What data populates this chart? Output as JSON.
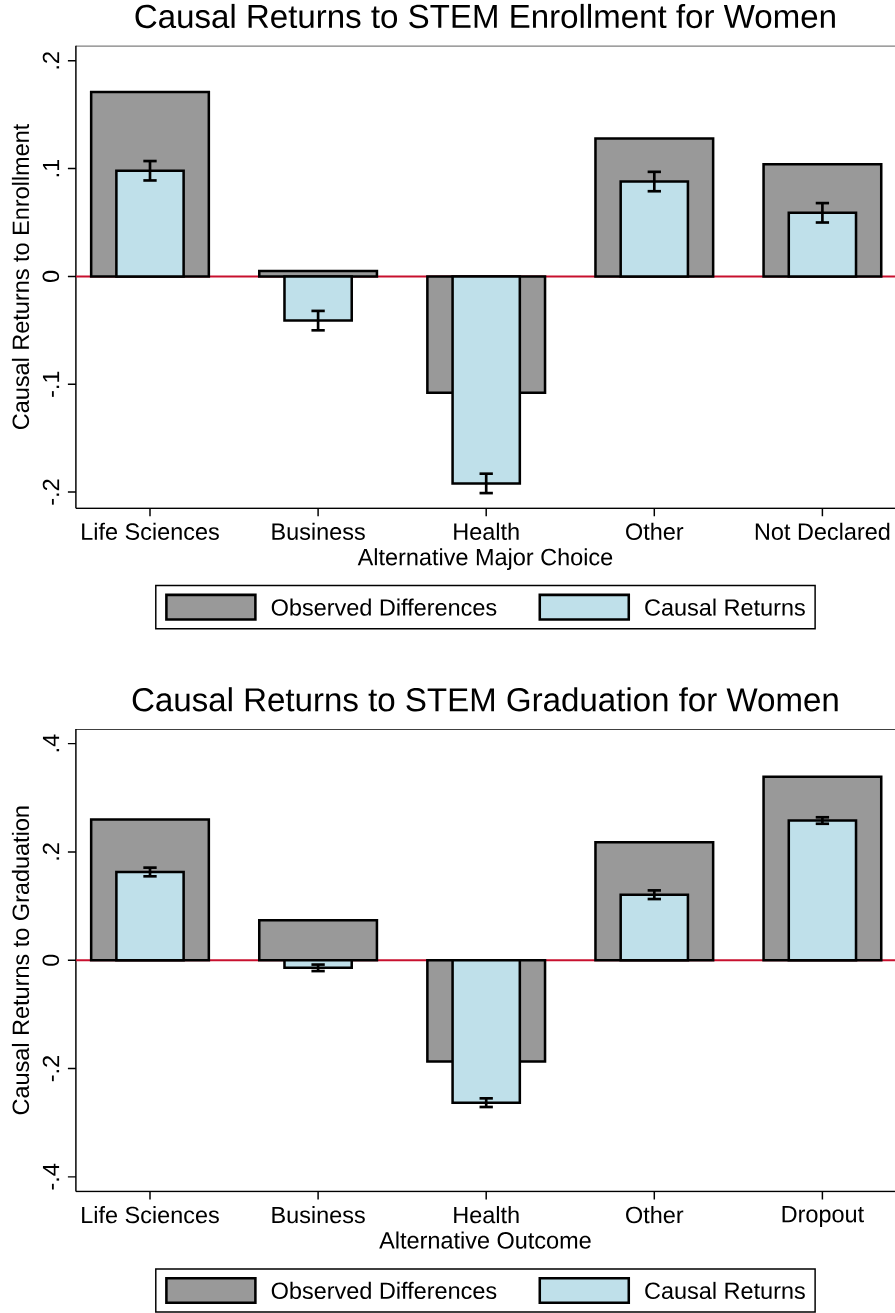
{
  "chart_data": [
    {
      "type": "bar",
      "title": "Causal Returns to STEM Enrollment for Women",
      "xlabel": "Alternative Major Choice",
      "ylabel": "Causal Returns to Enrollment",
      "categories": [
        "Life Sciences",
        "Business",
        "Health",
        "Other",
        "Not Declared"
      ],
      "series": [
        {
          "name": "Observed Differences",
          "color": "#999999",
          "values": [
            0.171,
            0.005,
            -0.108,
            0.128,
            0.104
          ]
        },
        {
          "name": "Causal Returns",
          "color": "#bfe0ea",
          "values": [
            0.098,
            -0.041,
            -0.192,
            0.088,
            0.059
          ],
          "errors": [
            0.009,
            0.009,
            0.009,
            0.009,
            0.009
          ]
        }
      ],
      "ylim": [
        -0.215,
        0.214
      ],
      "yticks": [
        {
          "value": -0.2,
          "label": "-.2"
        },
        {
          "value": -0.1,
          "label": "-.1"
        },
        0,
        {
          "value": 0.1,
          "label": ".1"
        },
        {
          "value": 0.2,
          "label": ".2"
        }
      ],
      "ref_lines": [
        {
          "axis": "y",
          "value": 0,
          "color": "#c8102e"
        }
      ],
      "legend": "bottom"
    },
    {
      "type": "bar",
      "title": "Causal Returns to STEM Graduation for Women",
      "xlabel": "Alternative Outcome",
      "ylabel": "Causal Returns to Graduation",
      "categories": [
        "Life Sciences",
        "Business",
        "Health",
        "Other",
        "Dropout"
      ],
      "series": [
        {
          "name": "Observed Differences",
          "color": "#999999",
          "values": [
            0.26,
            0.074,
            -0.187,
            0.218,
            0.339
          ]
        },
        {
          "name": "Causal Returns",
          "color": "#bfe0ea",
          "values": [
            0.163,
            -0.014,
            -0.263,
            0.121,
            0.258
          ],
          "errors": [
            0.008,
            0.006,
            0.008,
            0.008,
            0.006
          ]
        }
      ],
      "ylim": [
        -0.427,
        0.427
      ],
      "yticks": [
        {
          "value": -0.4,
          "label": "-.4"
        },
        {
          "value": -0.2,
          "label": "-.2"
        },
        0,
        {
          "value": 0.2,
          "label": ".2"
        },
        {
          "value": 0.4,
          "label": ".4"
        }
      ],
      "ref_lines": [
        {
          "axis": "y",
          "value": 0,
          "color": "#c8102e"
        }
      ],
      "legend": "bottom"
    }
  ]
}
